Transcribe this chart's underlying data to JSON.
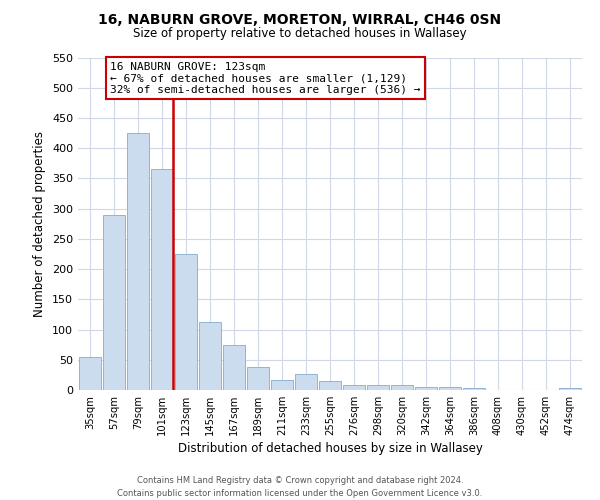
{
  "title": "16, NABURN GROVE, MORETON, WIRRAL, CH46 0SN",
  "subtitle": "Size of property relative to detached houses in Wallasey",
  "xlabel": "Distribution of detached houses by size in Wallasey",
  "ylabel": "Number of detached properties",
  "bar_labels": [
    "35sqm",
    "57sqm",
    "79sqm",
    "101sqm",
    "123sqm",
    "145sqm",
    "167sqm",
    "189sqm",
    "211sqm",
    "233sqm",
    "255sqm",
    "276sqm",
    "298sqm",
    "320sqm",
    "342sqm",
    "364sqm",
    "386sqm",
    "408sqm",
    "430sqm",
    "452sqm",
    "474sqm"
  ],
  "bar_values": [
    55,
    290,
    425,
    365,
    225,
    113,
    75,
    38,
    17,
    27,
    15,
    9,
    9,
    8,
    5,
    5,
    4,
    0,
    0,
    0,
    4
  ],
  "bar_color": "#ccdcef",
  "bar_edge_color": "#92b4d4",
  "vline_color": "#cc0000",
  "annotation_title": "16 NABURN GROVE: 123sqm",
  "annotation_line1": "← 67% of detached houses are smaller (1,129)",
  "annotation_line2": "32% of semi-detached houses are larger (536) →",
  "annotation_box_color": "#ffffff",
  "annotation_box_edge": "#cc0000",
  "ylim": [
    0,
    550
  ],
  "yticks": [
    0,
    50,
    100,
    150,
    200,
    250,
    300,
    350,
    400,
    450,
    500,
    550
  ],
  "footer_line1": "Contains HM Land Registry data © Crown copyright and database right 2024.",
  "footer_line2": "Contains public sector information licensed under the Open Government Licence v3.0.",
  "bg_color": "#ffffff",
  "grid_color": "#d0d8e8"
}
